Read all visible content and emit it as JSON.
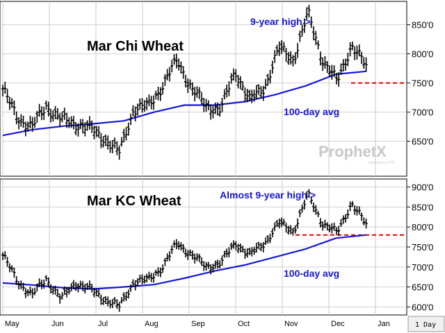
{
  "chart_data": [
    {
      "type": "line",
      "title": "Mar Chi Wheat",
      "annotations": [
        "9-year high >",
        "100-day avg"
      ],
      "watermark": {
        "brand": "ProphetX",
        "sub": "powered by DTN"
      },
      "y_ticks": [
        "850'0",
        "800'0",
        "750'0",
        "700'0",
        "650'0"
      ],
      "ylim": [
        590,
        890
      ],
      "reference_line": 750,
      "x_month_index": [
        0,
        0.5,
        1,
        1.5,
        2,
        2.5,
        3,
        3.5,
        4,
        4.5,
        5,
        5.5,
        6,
        6.5,
        7,
        7.5,
        7.8
      ],
      "series": [
        {
          "name": "Mar Chi Wheat",
          "style": "bars",
          "color": "#000000",
          "values": [
            740,
            690,
            675,
            710,
            688,
            680,
            672,
            655,
            630,
            705,
            710,
            745,
            790,
            740,
            710,
            705,
            770,
            720,
            742,
            810,
            790,
            870,
            790,
            752,
            815,
            778
          ]
        },
        {
          "name": "100-day avg",
          "style": "line",
          "color": "#1515d8",
          "values": [
            660,
            670,
            676,
            680,
            685,
            700,
            712,
            712,
            718,
            730,
            745,
            765,
            770
          ]
        }
      ]
    },
    {
      "type": "line",
      "title": "Mar KC Wheat",
      "annotations": [
        "Almost 9-year high >",
        "100-day avg"
      ],
      "y_ticks": [
        "900'0",
        "850'0",
        "800'0",
        "750'0",
        "700'0",
        "650'0",
        "600'0"
      ],
      "ylim": [
        580,
        920
      ],
      "reference_line": 780,
      "x_month_index": [
        0,
        0.5,
        1,
        1.5,
        2,
        2.5,
        3,
        3.5,
        4,
        4.5,
        5,
        5.5,
        6,
        6.5,
        7,
        7.5,
        7.8
      ],
      "series": [
        {
          "name": "Mar KC Wheat",
          "style": "bars",
          "color": "#000000",
          "values": [
            730,
            665,
            630,
            670,
            620,
            660,
            645,
            620,
            600,
            662,
            668,
            700,
            760,
            730,
            700,
            710,
            760,
            730,
            760,
            810,
            790,
            880,
            810,
            785,
            860,
            805
          ]
        },
        {
          "name": "100-day avg",
          "style": "line",
          "color": "#1515d8",
          "values": [
            660,
            655,
            648,
            645,
            650,
            656,
            672,
            690,
            705,
            725,
            745,
            772,
            780
          ]
        }
      ]
    }
  ],
  "x_axis": {
    "months": [
      "May",
      "Jun",
      "Jul",
      "Aug",
      "Sep",
      "Oct",
      "Nov",
      "Dec",
      "Jan"
    ]
  },
  "periodicity": "1 Day"
}
